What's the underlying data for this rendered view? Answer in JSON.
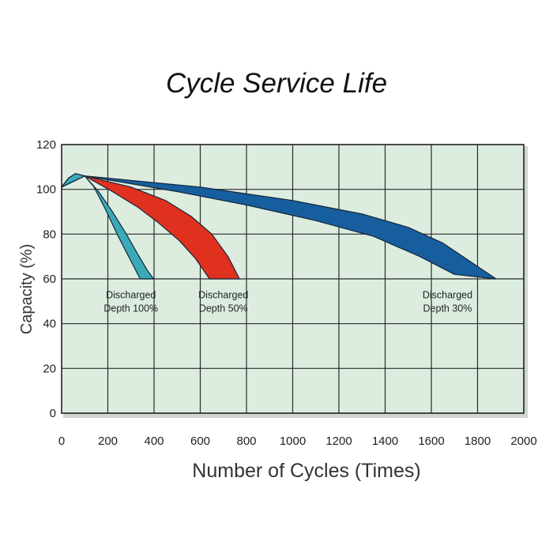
{
  "chart_data": {
    "type": "area",
    "title": "Cycle Service Life",
    "xlabel": "Number of Cycles (Times)",
    "ylabel": "Capacity (%)",
    "xlim": [
      0,
      2000
    ],
    "ylim": [
      0,
      120
    ],
    "xticks": [
      0,
      200,
      400,
      600,
      800,
      1000,
      1200,
      1400,
      1600,
      1800,
      2000
    ],
    "yticks": [
      0,
      20,
      40,
      60,
      80,
      100,
      120
    ],
    "grid": true,
    "series": [
      {
        "name": "Discharged Depth 100%",
        "label_lines": [
          "Discharged",
          "Depth 100%"
        ],
        "color": "#3aaab8",
        "upper": [
          [
            0,
            101
          ],
          [
            30,
            105
          ],
          [
            60,
            107
          ],
          [
            100,
            106
          ],
          [
            140,
            101
          ],
          [
            190,
            91
          ],
          [
            240,
            80
          ],
          [
            290,
            70
          ],
          [
            340,
            60
          ],
          [
            398,
            60
          ]
        ],
        "lower": [
          [
            100,
            106
          ],
          [
            160,
            99
          ],
          [
            220,
            90
          ],
          [
            280,
            80
          ],
          [
            330,
            71
          ],
          [
            370,
            64
          ],
          [
            398,
            60
          ]
        ],
        "label_at": [
          300,
          56
        ]
      },
      {
        "name": "Discharged Depth 50%",
        "label_lines": [
          "Discharged",
          "Depth 50%"
        ],
        "color": "#e0301e",
        "upper": [
          [
            0,
            101
          ],
          [
            30,
            105
          ],
          [
            60,
            107
          ],
          [
            100,
            106
          ],
          [
            220,
            99
          ],
          [
            330,
            92
          ],
          [
            420,
            85
          ],
          [
            510,
            77
          ],
          [
            580,
            69
          ],
          [
            640,
            60
          ],
          [
            770,
            60
          ]
        ],
        "lower": [
          [
            100,
            106
          ],
          [
            300,
            101
          ],
          [
            450,
            95
          ],
          [
            560,
            88
          ],
          [
            650,
            80
          ],
          [
            720,
            70
          ],
          [
            770,
            60
          ]
        ],
        "label_at": [
          700,
          56
        ]
      },
      {
        "name": "Discharged Depth 30%",
        "label_lines": [
          "Discharged",
          "Depth 30%"
        ],
        "color": "#175e9e",
        "upper": [
          [
            0,
            101
          ],
          [
            30,
            105
          ],
          [
            60,
            107
          ],
          [
            100,
            106
          ],
          [
            500,
            99
          ],
          [
            800,
            93
          ],
          [
            1100,
            86
          ],
          [
            1350,
            79
          ],
          [
            1550,
            70
          ],
          [
            1700,
            62
          ],
          [
            1880,
            60
          ]
        ],
        "lower": [
          [
            100,
            106
          ],
          [
            600,
            101
          ],
          [
            1000,
            95
          ],
          [
            1300,
            89
          ],
          [
            1500,
            83
          ],
          [
            1650,
            76
          ],
          [
            1780,
            67
          ],
          [
            1880,
            60
          ]
        ],
        "label_at": [
          1670,
          56
        ]
      }
    ]
  }
}
